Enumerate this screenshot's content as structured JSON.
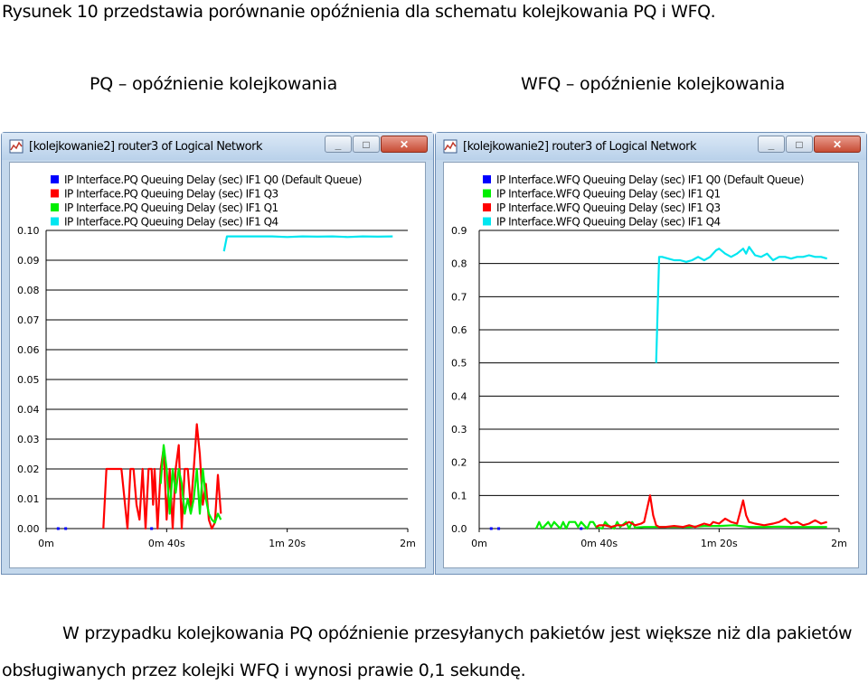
{
  "intro": "Rysunek 10 przedstawia porównanie opóźnienia dla schematu kolejkowania PQ i WFQ.",
  "caption_left": "PQ – opóźnienie kolejkowania",
  "caption_right": "WFQ – opóźnienie kolejkowania",
  "paragraph_line1": "W przypadku kolejkowania PQ opóźnienie przesyłanych pakietów jest większe niż dla pakietów",
  "paragraph_line2": "obsługiwanych przez kolejki WFQ i wynosi prawie 0,1 sekundę.",
  "colors": {
    "q0": "#0000ff",
    "q3": "#ff0000",
    "q1": "#00ee00",
    "q4": "#00e6f0",
    "grid": "#000000"
  },
  "windows": [
    {
      "title": "[kolejkowanie2] router3 of Logical Network",
      "buttons": [
        "_",
        "□",
        "✕"
      ]
    },
    {
      "title": "[kolejkowanie2] router3 of Logical Network",
      "buttons": [
        "_",
        "□",
        "✕"
      ]
    }
  ],
  "chart_data": [
    {
      "type": "line",
      "xlim": [
        0,
        120
      ],
      "ylim": [
        0,
        0.1
      ],
      "yticks": [
        0.0,
        0.01,
        0.02,
        0.03,
        0.04,
        0.05,
        0.06,
        0.07,
        0.08,
        0.09,
        0.1
      ],
      "ytick_labels": [
        "0.00",
        "0.01",
        "0.02",
        "0.03",
        "0.04",
        "0.05",
        "0.06",
        "0.07",
        "0.08",
        "0.09",
        "0.10"
      ],
      "xticks": [
        0,
        40,
        80,
        120
      ],
      "xtick_labels": [
        "0m",
        "0m 40s",
        "1m 20s",
        "2m"
      ],
      "series": [
        {
          "name": "IP Interface.PQ Queuing Delay (sec) IF1 Q0 (Default Queue)",
          "color_key": "q0",
          "x": [
            4,
            6.5,
            35
          ],
          "y": [
            0,
            0,
            0
          ],
          "style": "dots"
        },
        {
          "name": "IP Interface.PQ Queuing Delay (sec) IF1 Q3",
          "color_key": "q3",
          "x": [
            19,
            20,
            21,
            22,
            23,
            25,
            27,
            28,
            29,
            30,
            31,
            32,
            33,
            34,
            35,
            35.5,
            36,
            37,
            38,
            39,
            40,
            41,
            42,
            43,
            44,
            45,
            46,
            47,
            48,
            49,
            50,
            51,
            52,
            53,
            54,
            55,
            56,
            57,
            58
          ],
          "y": [
            0,
            0.02,
            0.02,
            0.02,
            0.02,
            0.02,
            0.0,
            0.02,
            0.02,
            0.008,
            0.003,
            0.02,
            0.0,
            0.02,
            0.02,
            0.008,
            0.02,
            0.0,
            0.02,
            0.027,
            0.003,
            0.02,
            0.0,
            0.02,
            0.028,
            0.0,
            0.02,
            0.02,
            0.007,
            0.02,
            0.035,
            0.025,
            0.008,
            0.015,
            0.003,
            0.0,
            0.002,
            0.018,
            0.005
          ],
          "style": "line"
        },
        {
          "name": "IP Interface.PQ Queuing Delay (sec) IF1 Q1",
          "color_key": "q1",
          "x": [
            38,
            39,
            40,
            41,
            42,
            43,
            44,
            45,
            46,
            47,
            48,
            49,
            50,
            51,
            52,
            53,
            54,
            55,
            56,
            57,
            58
          ],
          "y": [
            0.015,
            0.028,
            0.02,
            0.005,
            0.02,
            0.012,
            0.02,
            0.015,
            0.005,
            0.01,
            0.005,
            0.01,
            0.02,
            0.005,
            0.02,
            0.01,
            0.005,
            0.003,
            0.002,
            0.005,
            0.003
          ],
          "style": "line"
        },
        {
          "name": "IP Interface.PQ Queuing Delay (sec) IF1 Q4",
          "color_key": "q4",
          "x": [
            59,
            60,
            62,
            65,
            70,
            75,
            80,
            85,
            90,
            95,
            100,
            105,
            110,
            115
          ],
          "y": [
            0.093,
            0.098,
            0.098,
            0.098,
            0.098,
            0.098,
            0.0978,
            0.098,
            0.0979,
            0.098,
            0.0978,
            0.098,
            0.0979,
            0.098
          ],
          "style": "line"
        }
      ]
    },
    {
      "type": "line",
      "xlim": [
        0,
        120
      ],
      "ylim": [
        0,
        0.9
      ],
      "yticks": [
        0.0,
        0.1,
        0.2,
        0.3,
        0.4,
        0.5,
        0.6,
        0.7,
        0.8,
        0.9
      ],
      "ytick_labels": [
        "0.0",
        "0.1",
        "0.2",
        "0.3",
        "0.4",
        "0.5",
        "0.6",
        "0.7",
        "0.8",
        "0.9"
      ],
      "xticks": [
        0,
        40,
        80,
        120
      ],
      "xtick_labels": [
        "0m",
        "0m 40s",
        "1m 20s",
        "2m"
      ],
      "series": [
        {
          "name": "IP Interface.WFQ Queuing Delay (sec) IF1 Q0 (Default Queue)",
          "color_key": "q0",
          "x": [
            4,
            6.5,
            34
          ],
          "y": [
            0,
            0,
            0
          ],
          "style": "dots"
        },
        {
          "name": "IP Interface.WFQ Queuing Delay (sec) IF1 Q1",
          "color_key": "q1",
          "x": [
            19,
            20,
            21,
            23,
            24,
            25,
            27,
            28,
            29,
            30,
            32,
            33,
            34,
            36,
            37,
            38,
            39,
            41,
            42,
            43,
            45,
            46,
            47,
            49,
            50,
            51,
            52,
            55,
            58,
            60,
            65,
            70,
            75,
            80,
            85,
            90,
            95,
            100,
            105,
            110,
            116
          ],
          "y": [
            0.0,
            0.02,
            0.0,
            0.02,
            0.005,
            0.02,
            0.0,
            0.02,
            0.0,
            0.02,
            0.02,
            0.005,
            0.02,
            0.0,
            0.02,
            0.02,
            0.005,
            0.0,
            0.02,
            0.01,
            0.0,
            0.02,
            0.005,
            0.02,
            0.0,
            0.02,
            0.003,
            0.005,
            0.005,
            0.005,
            0.005,
            0.005,
            0.008,
            0.008,
            0.01,
            0.005,
            0.005,
            0.006,
            0.005,
            0.005,
            0.005
          ],
          "style": "line"
        },
        {
          "name": "IP Interface.WFQ Queuing Delay (sec) IF1 Q3",
          "color_key": "q3",
          "x": [
            39,
            40,
            42,
            44,
            46,
            48,
            50,
            52,
            54,
            55,
            56,
            57,
            58,
            59,
            60,
            62,
            65,
            68,
            70,
            72,
            75,
            77,
            78,
            80,
            82,
            84,
            86,
            87,
            88,
            89,
            90,
            92,
            95,
            98,
            100,
            102,
            104,
            106,
            108,
            110,
            112,
            114,
            116
          ],
          "y": [
            0.005,
            0.01,
            0.01,
            0.005,
            0.01,
            0.01,
            0.02,
            0.01,
            0.015,
            0.02,
            0.06,
            0.1,
            0.04,
            0.01,
            0.005,
            0.005,
            0.008,
            0.005,
            0.01,
            0.005,
            0.015,
            0.01,
            0.02,
            0.015,
            0.03,
            0.02,
            0.015,
            0.05,
            0.085,
            0.04,
            0.02,
            0.015,
            0.01,
            0.015,
            0.02,
            0.03,
            0.015,
            0.02,
            0.01,
            0.015,
            0.025,
            0.015,
            0.02
          ],
          "style": "line"
        },
        {
          "name": "IP Interface.WFQ Queuing Delay (sec) IF1 Q4",
          "color_key": "q4",
          "x": [
            59,
            60,
            61,
            63,
            65,
            67,
            69,
            71,
            73,
            75,
            77,
            79,
            80,
            82,
            84,
            86,
            88,
            89,
            90,
            92,
            94,
            96,
            98,
            100,
            102,
            104,
            106,
            108,
            110,
            112,
            114,
            116
          ],
          "y": [
            0.5,
            0.82,
            0.82,
            0.815,
            0.81,
            0.81,
            0.805,
            0.81,
            0.82,
            0.81,
            0.82,
            0.84,
            0.845,
            0.83,
            0.82,
            0.83,
            0.845,
            0.83,
            0.85,
            0.825,
            0.82,
            0.83,
            0.81,
            0.82,
            0.82,
            0.815,
            0.82,
            0.82,
            0.825,
            0.82,
            0.82,
            0.815
          ],
          "style": "line"
        }
      ]
    }
  ]
}
